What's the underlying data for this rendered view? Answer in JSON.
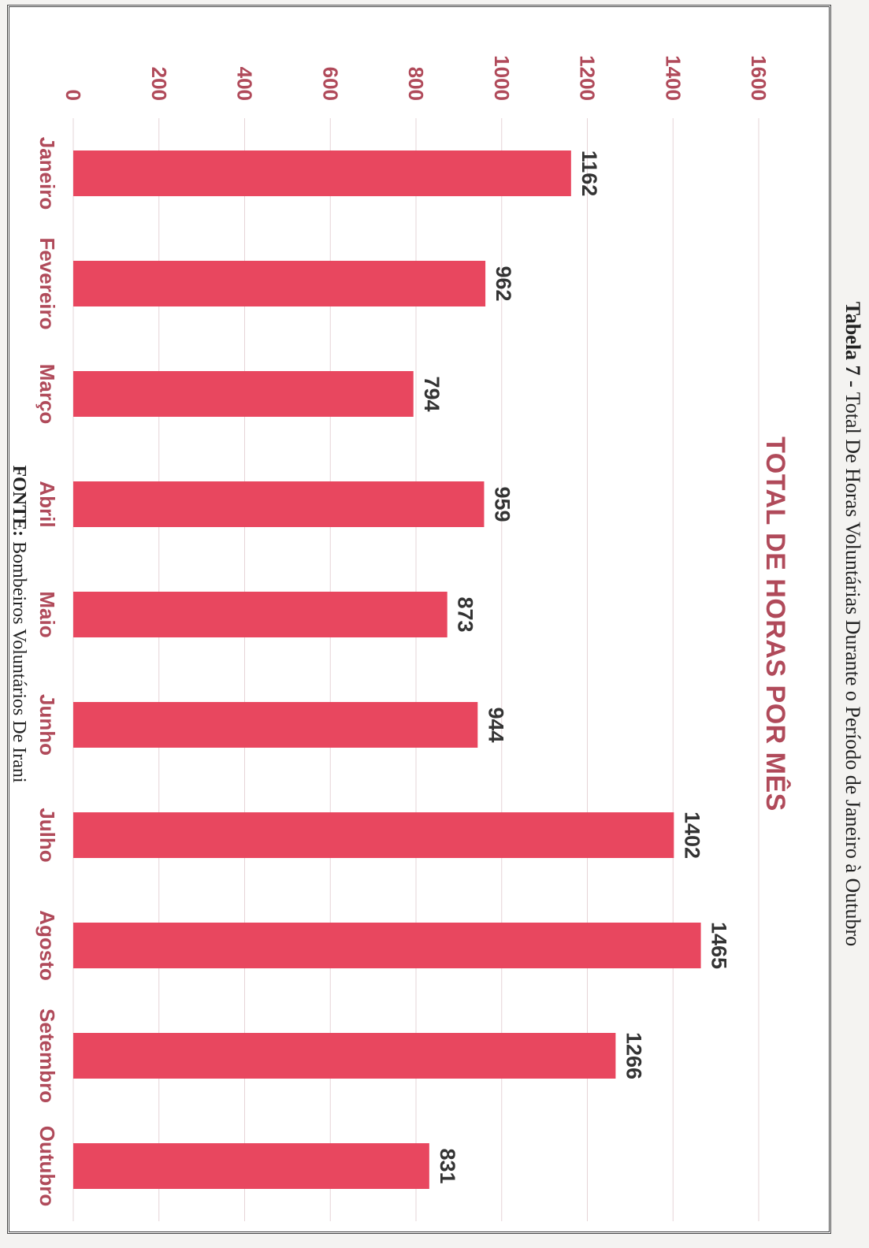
{
  "caption": {
    "label": "Tabela 7 -",
    "text": "Total De Horas Voluntárias Durante o Período de Janeiro à Outubro"
  },
  "source": {
    "label": "FONTE:",
    "text": "Bombeiros Voluntários De Irani"
  },
  "chart_data": {
    "type": "bar",
    "title": "TOTAL DE HORAS POR MÊS",
    "categories": [
      "Janeiro",
      "Fevereiro",
      "Março",
      "Abril",
      "Maio",
      "Junho",
      "Julho",
      "Agosto",
      "Setembro",
      "Outubro"
    ],
    "values": [
      1162,
      962,
      794,
      959,
      873,
      944,
      1402,
      1465,
      1266,
      831
    ],
    "ylim": [
      0,
      1600
    ],
    "yticks": [
      0,
      200,
      400,
      600,
      800,
      1000,
      1200,
      1400,
      1600
    ],
    "xlabel": "",
    "ylabel": "",
    "grid": true,
    "legend": "none",
    "data_labels": true
  },
  "colors": {
    "bar": "#e8475f",
    "grid": "#e6d4d7",
    "text": "#b04a5a"
  }
}
